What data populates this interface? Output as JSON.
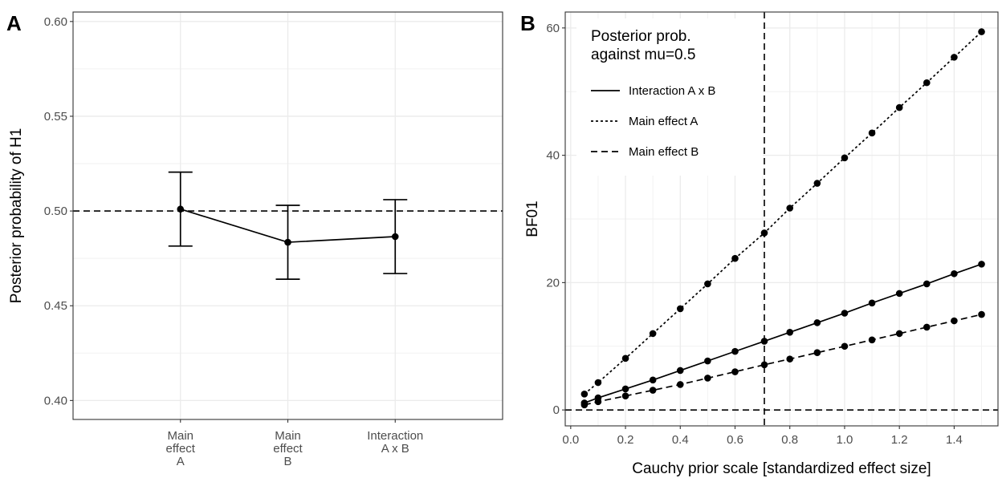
{
  "chart_data": [
    {
      "panel": "A",
      "type": "line",
      "xlabel": "",
      "ylabel": "Posterior probability of H1",
      "ylim": [
        0.39,
        0.605
      ],
      "yticks": [
        0.4,
        0.45,
        0.5,
        0.55,
        0.6
      ],
      "ytick_labels": [
        "0.40",
        "0.45",
        "0.50",
        "0.55",
        "0.60"
      ],
      "categories": [
        [
          "Main",
          "effect",
          "A"
        ],
        [
          "Main",
          "effect",
          "B"
        ],
        [
          "Interaction",
          "A x B"
        ]
      ],
      "values": [
        0.501,
        0.4835,
        0.4865
      ],
      "error_low": [
        0.4815,
        0.464,
        0.467
      ],
      "error_high": [
        0.5205,
        0.503,
        0.506
      ],
      "hline": 0.5,
      "grid": true
    },
    {
      "panel": "B",
      "type": "line",
      "xlabel": "Cauchy prior scale [standardized effect size]",
      "ylabel": "BF01",
      "xlim": [
        -0.02,
        1.56
      ],
      "ylim": [
        -2.5,
        62.5
      ],
      "xticks": [
        0.0,
        0.2,
        0.4,
        0.6,
        0.8,
        1.0,
        1.2,
        1.4
      ],
      "xtick_labels": [
        "0.0",
        "0.2",
        "0.4",
        "0.6",
        "0.8",
        "1.0",
        "1.2",
        "1.4"
      ],
      "yticks": [
        0,
        20,
        40,
        60
      ],
      "ytick_labels": [
        "0",
        "20",
        "40",
        "60"
      ],
      "x": [
        0.05,
        0.1,
        0.2,
        0.3,
        0.4,
        0.5,
        0.6,
        0.707,
        0.8,
        0.9,
        1.0,
        1.1,
        1.2,
        1.3,
        1.4,
        1.5
      ],
      "series": [
        {
          "name": "Interaction A x B",
          "dash": "solid",
          "values": [
            1.1,
            1.9,
            3.3,
            4.7,
            6.2,
            7.7,
            9.2,
            10.8,
            12.2,
            13.7,
            15.2,
            16.8,
            18.3,
            19.8,
            21.4,
            22.9
          ]
        },
        {
          "name": "Main effect A",
          "dash": "dotted",
          "values": [
            2.5,
            4.3,
            8.1,
            12.0,
            15.9,
            19.8,
            23.8,
            27.8,
            31.7,
            35.6,
            39.6,
            43.5,
            47.5,
            51.4,
            55.4,
            59.4
          ]
        },
        {
          "name": "Main effect B",
          "dash": "dashed",
          "values": [
            0.8,
            1.3,
            2.2,
            3.1,
            4.0,
            5.0,
            6.0,
            7.1,
            8.0,
            9.0,
            10.0,
            11.0,
            12.0,
            13.0,
            14.0,
            15.0
          ]
        }
      ],
      "vline": 0.707,
      "hline": 0,
      "legend": {
        "title": [
          "Posterior prob.",
          "against mu=0.5"
        ],
        "position": "top-left"
      },
      "grid": true
    }
  ]
}
